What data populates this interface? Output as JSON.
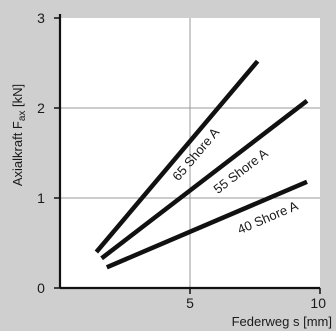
{
  "chart_data": {
    "type": "line",
    "xlabel": "Federweg s [mm]",
    "ylabel_main": "Axialkraft F",
    "ylabel_sub": "ax",
    "ylabel_unit": " [kN]",
    "xlim": [
      0,
      10
    ],
    "ylim": [
      0,
      3
    ],
    "x_ticks": [
      {
        "value": 5,
        "label": "5"
      },
      {
        "value": 10,
        "label": "10"
      }
    ],
    "y_ticks": [
      {
        "value": 0,
        "label": "0"
      },
      {
        "value": 1,
        "label": "1"
      },
      {
        "value": 2,
        "label": "2"
      },
      {
        "value": 3,
        "label": "3"
      }
    ],
    "grid": true,
    "colors": {
      "background": "#cfcfcf",
      "plot_area": "#ffffff",
      "line": "#111111",
      "grid": "#999999"
    },
    "series": [
      {
        "name": "65 Shore A",
        "points": [
          [
            1.4,
            0.4
          ],
          [
            7.6,
            2.52
          ]
        ],
        "label_at": 5.2
      },
      {
        "name": "55 Shore A",
        "points": [
          [
            1.6,
            0.33
          ],
          [
            9.5,
            2.08
          ]
        ],
        "label_at": 6.9
      },
      {
        "name": "40 Shore A",
        "points": [
          [
            1.8,
            0.23
          ],
          [
            9.5,
            1.18
          ]
        ],
        "label_at": 7.9
      }
    ]
  }
}
